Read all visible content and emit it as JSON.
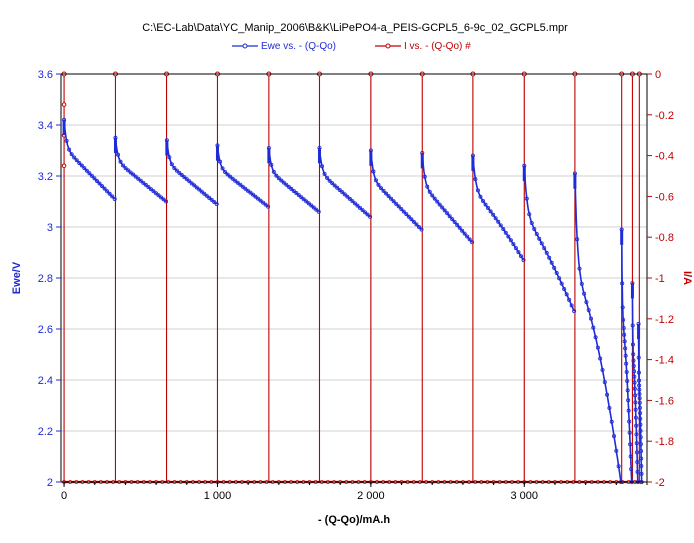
{
  "chart_data": {
    "type": "line",
    "title": "C:\\EC-Lab\\Data\\YC_Manip_2006\\B&K\\LiPePO4-a_PEIS-GCPL5_6-9c_02_GCPL5.mpr",
    "xlabel": "- (Q-Qo)/mA.h",
    "ylabel_left": "Ewe/V",
    "ylabel_right": "I/A",
    "xlim": [
      -20,
      3800
    ],
    "ylim_left": [
      2.0,
      3.6
    ],
    "ylim_right": [
      -2.0,
      0.0
    ],
    "x_ticks": [
      0,
      1000,
      2000,
      3000
    ],
    "x_tick_labels": [
      "0",
      "1 000",
      "2 000",
      "3 000"
    ],
    "y_left_ticks": [
      2,
      2.2,
      2.4,
      2.6,
      2.8,
      3,
      3.2,
      3.4,
      3.6
    ],
    "y_left_tick_labels": [
      "2",
      "2.2",
      "2.4",
      "2.6",
      "2.8",
      "3",
      "3.2",
      "3.4",
      "3.6"
    ],
    "y_right_ticks": [
      0,
      -0.2,
      -0.4,
      -0.6,
      -0.8,
      -1,
      -1.2,
      -1.4,
      -1.6,
      -1.8,
      -2
    ],
    "y_right_tick_labels": [
      "0",
      "-0.2",
      "-0.4",
      "-0.6",
      "-0.8",
      "-1",
      "-1.2",
      "-1.4",
      "-1.6",
      "-1.8",
      "-2"
    ],
    "grid": true,
    "legend_placement": "top-center",
    "series": [
      {
        "name": "Ewe vs. - (Q-Qo)",
        "axis": "left",
        "color": "#1f2bd6",
        "segments": [
          {
            "x0": 0,
            "x1": 330,
            "y_start": 3.42,
            "y_end": 3.11,
            "pulse_top": 3.42
          },
          {
            "x0": 335,
            "x1": 665,
            "y_start": 3.35,
            "y_end": 3.1,
            "pulse_top": 3.35
          },
          {
            "x0": 670,
            "x1": 995,
            "y_start": 3.34,
            "y_end": 3.09,
            "pulse_top": 3.34
          },
          {
            "x0": 1000,
            "x1": 1330,
            "y_start": 3.32,
            "y_end": 3.08,
            "pulse_top": 3.32
          },
          {
            "x0": 1335,
            "x1": 1660,
            "y_start": 3.31,
            "y_end": 3.06,
            "pulse_top": 3.31
          },
          {
            "x0": 1665,
            "x1": 1995,
            "y_start": 3.31,
            "y_end": 3.04,
            "pulse_top": 3.31
          },
          {
            "x0": 2000,
            "x1": 2330,
            "y_start": 3.3,
            "y_end": 2.99,
            "pulse_top": 3.3
          },
          {
            "x0": 2335,
            "x1": 2660,
            "y_start": 3.29,
            "y_end": 2.94,
            "pulse_top": 3.29
          },
          {
            "x0": 2665,
            "x1": 2995,
            "y_start": 3.28,
            "y_end": 2.87,
            "pulse_top": 3.28
          },
          {
            "x0": 3000,
            "x1": 3325,
            "y_start": 3.24,
            "y_end": 2.67,
            "pulse_top": 3.24
          },
          {
            "x0": 3330,
            "x1": 3630,
            "y_start": 3.21,
            "y_end": 2.0,
            "pulse_top": 3.21
          },
          {
            "x0": 3635,
            "x1": 3700,
            "y_start": 2.99,
            "y_end": 2.0,
            "pulse_top": 2.99
          },
          {
            "x0": 3705,
            "x1": 3740,
            "y_start": 2.78,
            "y_end": 2.0,
            "pulse_top": 2.78
          },
          {
            "x0": 3745,
            "x1": 3765,
            "y_start": 2.62,
            "y_end": 2.0,
            "pulse_top": 2.62
          }
        ]
      },
      {
        "name": "I vs. - (Q-Qo) #",
        "axis": "right",
        "color": "#c00000",
        "baseline": -2.0,
        "spike_value": 0.0,
        "spike_x": [
          0,
          335,
          668,
          1000,
          1335,
          1665,
          2000,
          2335,
          2665,
          3000,
          3330,
          3635,
          3705,
          3750
        ]
      }
    ]
  }
}
